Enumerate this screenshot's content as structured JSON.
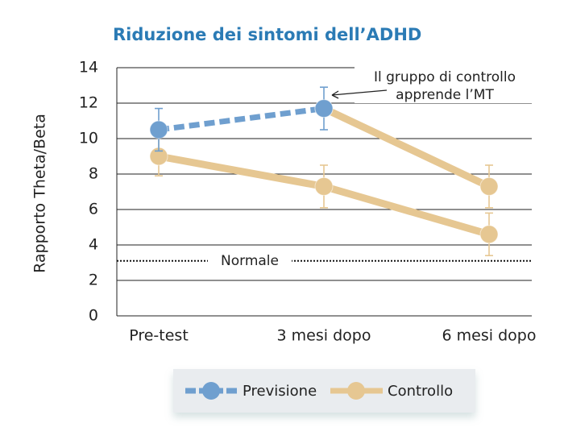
{
  "chart_data": {
    "type": "line",
    "title": "Riduzione dei sintomi dell’ADHD",
    "ylabel": "Rapporto Theta/Beta",
    "categories": [
      "Pre-test",
      "3 mesi dopo",
      "6 mesi dopo"
    ],
    "series": [
      {
        "name": "Previsione",
        "color": "#6f9fcf",
        "dashed": true,
        "values": [
          10.5,
          11.7,
          null
        ],
        "errors": [
          1.2,
          1.2,
          null
        ]
      },
      {
        "name": "Controllo",
        "color": "#e6c792",
        "values": [
          null,
          11.7,
          7.3
        ],
        "errors": [
          null,
          null,
          1.2
        ]
      },
      {
        "color": "#e6c792",
        "values": [
          9.0,
          7.3,
          4.6
        ],
        "errors": [
          1.1,
          1.2,
          1.2
        ]
      }
    ],
    "ylim": [
      0,
      14
    ],
    "yticks": [
      0,
      2,
      4,
      6,
      8,
      10,
      12,
      14
    ],
    "grid": true,
    "reference_line": {
      "value": 3.1,
      "label": "Normale"
    },
    "annotation": {
      "lines": [
        "Il gruppo di controllo",
        "apprende l’MT"
      ]
    }
  }
}
